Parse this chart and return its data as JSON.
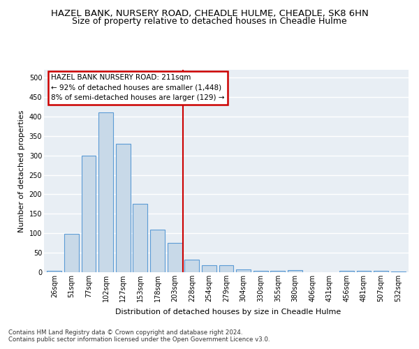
{
  "title": "HAZEL BANK, NURSERY ROAD, CHEADLE HULME, CHEADLE, SK8 6HN",
  "subtitle": "Size of property relative to detached houses in Cheadle Hulme",
  "xlabel": "Distribution of detached houses by size in Cheadle Hulme",
  "ylabel": "Number of detached properties",
  "categories": [
    "26sqm",
    "51sqm",
    "77sqm",
    "102sqm",
    "127sqm",
    "153sqm",
    "178sqm",
    "203sqm",
    "228sqm",
    "254sqm",
    "279sqm",
    "304sqm",
    "330sqm",
    "355sqm",
    "380sqm",
    "406sqm",
    "431sqm",
    "456sqm",
    "481sqm",
    "507sqm",
    "532sqm"
  ],
  "values": [
    4,
    99,
    300,
    410,
    330,
    175,
    110,
    76,
    32,
    18,
    18,
    8,
    4,
    3,
    5,
    0,
    0,
    3,
    4,
    3,
    2
  ],
  "bar_color": "#c8d9e8",
  "bar_edgecolor": "#5b9bd5",
  "vline_x_index": 7.5,
  "vline_color": "#cc0000",
  "annotation_title": "HAZEL BANK NURSERY ROAD: 211sqm",
  "annotation_line1": "← 92% of detached houses are smaller (1,448)",
  "annotation_line2": "8% of semi-detached houses are larger (129) →",
  "annotation_box_color": "#cc0000",
  "ylim": [
    0,
    520
  ],
  "yticks": [
    0,
    50,
    100,
    150,
    200,
    250,
    300,
    350,
    400,
    450,
    500
  ],
  "footer1": "Contains HM Land Registry data © Crown copyright and database right 2024.",
  "footer2": "Contains public sector information licensed under the Open Government Licence v3.0.",
  "background_color": "#e8eef4",
  "grid_color": "#ffffff",
  "title_fontsize": 9.5,
  "subtitle_fontsize": 9,
  "axis_label_fontsize": 8,
  "tick_fontsize": 7,
  "annotation_fontsize": 7.5,
  "footer_fontsize": 6.2
}
